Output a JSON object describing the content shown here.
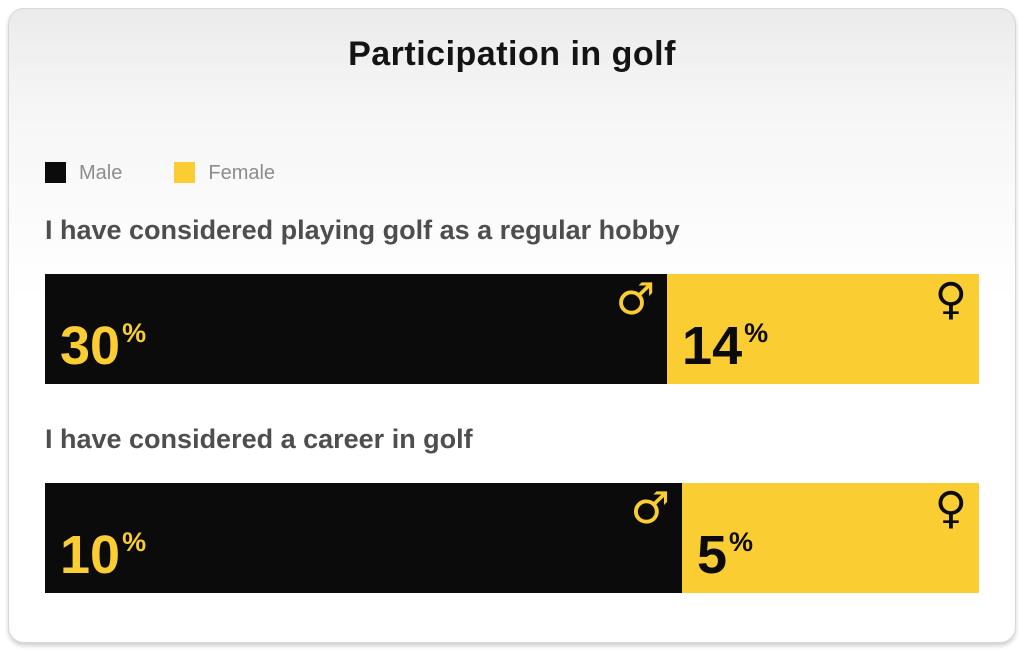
{
  "title": "Participation in golf",
  "colors": {
    "male": "#0b0b0b",
    "female": "#facd32",
    "question_text": "#4e4e4e",
    "legend_text": "#8d8d8d",
    "title_text": "#141414"
  },
  "legend": {
    "items": [
      {
        "label": "Male",
        "color": "#0b0b0b"
      },
      {
        "label": "Female",
        "color": "#facd32"
      }
    ]
  },
  "chart_data": {
    "type": "bar",
    "title": "Participation in golf",
    "orientation": "horizontal",
    "stacked": true,
    "unit": "%",
    "legend_position": "top-left",
    "categories": [
      "I have considered playing golf as a regular hobby",
      "I have considered a career in golf"
    ],
    "series": [
      {
        "name": "Male",
        "color": "#0b0b0b",
        "values": [
          30,
          10
        ]
      },
      {
        "name": "Female",
        "color": "#facd32",
        "values": [
          14,
          5
        ]
      }
    ],
    "rows": [
      {
        "question": "I have considered playing golf as a regular hobby",
        "male_value": "30",
        "male_unit": "%",
        "female_value": "14",
        "female_unit": "%",
        "male_symbol": "♂",
        "female_symbol": "♀",
        "male_width_pct": 66.6
      },
      {
        "question": "I have considered a career in golf",
        "male_value": "10",
        "male_unit": "%",
        "female_value": "5",
        "female_unit": "%",
        "male_symbol": "♂",
        "female_symbol": "♀",
        "male_width_pct": 68.2
      }
    ]
  }
}
